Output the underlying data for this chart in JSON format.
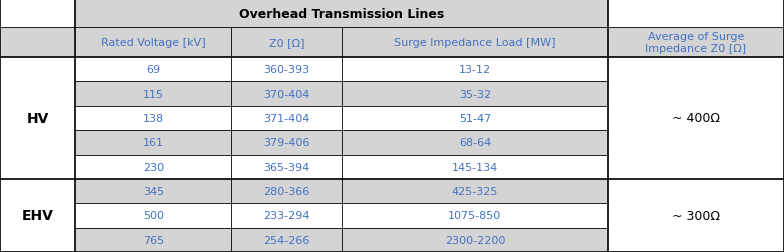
{
  "title": "Overhead Transmission Lines",
  "col_headers": [
    "Rated Voltage [kV]",
    "Z0 [Ω]",
    "Surge Impedance Load [MW]"
  ],
  "last_col_header": "Average of Surge\nImpedance Z0 [Ω]",
  "rows": [
    {
      "group": "HV",
      "voltage": "69",
      "z0": "360-393",
      "sil": "13-12"
    },
    {
      "group": "HV",
      "voltage": "115",
      "z0": "370-404",
      "sil": "35-32"
    },
    {
      "group": "HV",
      "voltage": "138",
      "z0": "371-404",
      "sil": "51-47"
    },
    {
      "group": "HV",
      "voltage": "161",
      "z0": "379-406",
      "sil": "68-64"
    },
    {
      "group": "HV",
      "voltage": "230",
      "z0": "365-394",
      "sil": "145-134"
    },
    {
      "group": "EHV",
      "voltage": "345",
      "z0": "280-366",
      "sil": "425-325"
    },
    {
      "group": "EHV",
      "voltage": "500",
      "z0": "233-294",
      "sil": "1075-850"
    },
    {
      "group": "EHV",
      "voltage": "765",
      "z0": "254-266",
      "sil": "2300-2200"
    }
  ],
  "hv_avg": "~ 400Ω",
  "ehv_avg": "~ 300Ω",
  "colors": {
    "gray_bg": "#D4D4D4",
    "white_bg": "#FFFFFF",
    "border": "#7F7F7F",
    "border_thick": "#000000",
    "text_blue": "#4472C4",
    "text_black": "#000000"
  },
  "figsize": [
    7.84,
    2.53
  ],
  "dpi": 100
}
